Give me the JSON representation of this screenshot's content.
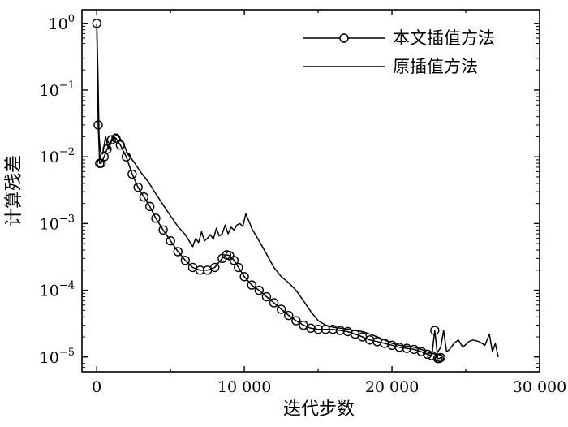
{
  "chart_data": {
    "type": "line",
    "title": "",
    "xlabel": "迭代步数",
    "ylabel": "计算残差",
    "xlim": [
      -1000,
      30000
    ],
    "ylim": [
      6e-06,
      1.6
    ],
    "y_scale": "log",
    "grid": false,
    "legend_position": "top-right",
    "x_ticks": [
      0,
      10000,
      20000,
      30000
    ],
    "x_tick_labels": [
      "0",
      "10 000",
      "20 000",
      "30 000"
    ],
    "y_ticks": [
      1e-05,
      0.0001,
      0.001,
      0.01,
      0.1,
      1
    ],
    "y_tick_labels": [
      {
        "base": "10",
        "exp": "−5"
      },
      {
        "base": "10",
        "exp": "−4"
      },
      {
        "base": "10",
        "exp": "−3"
      },
      {
        "base": "10",
        "exp": "−2"
      },
      {
        "base": "10",
        "exp": "−1"
      },
      {
        "base": "10",
        "exp": "0"
      }
    ],
    "series": [
      {
        "name": "本文插值方法",
        "marker": "circle-open",
        "color": "#000000",
        "x": [
          0,
          100,
          200,
          300,
          500,
          700,
          1000,
          1300,
          1600,
          2000,
          2400,
          2800,
          3200,
          3600,
          4000,
          4500,
          5000,
          5500,
          6000,
          6500,
          7000,
          7500,
          8000,
          8500,
          8800,
          9000,
          9300,
          9600,
          10000,
          10500,
          11000,
          11500,
          12000,
          12500,
          13000,
          13500,
          14000,
          14500,
          15000,
          15500,
          16000,
          16500,
          17000,
          17500,
          18000,
          18500,
          19000,
          19500,
          20000,
          20500,
          21000,
          21500,
          22000,
          22400,
          22700,
          22900,
          23100,
          23200,
          23300
        ],
        "y": [
          1.0,
          0.03,
          0.008,
          0.008,
          0.01,
          0.013,
          0.018,
          0.019,
          0.015,
          0.01,
          0.0055,
          0.0035,
          0.0025,
          0.0018,
          0.0012,
          0.0008,
          0.00055,
          0.00038,
          0.00028,
          0.00022,
          0.0002,
          0.0002,
          0.00022,
          0.0003,
          0.00034,
          0.00033,
          0.00028,
          0.00022,
          0.00016,
          0.00012,
          0.0001,
          8e-05,
          6.5e-05,
          5.2e-05,
          4.2e-05,
          3.5e-05,
          3e-05,
          2.7e-05,
          2.6e-05,
          2.6e-05,
          2.6e-05,
          2.5e-05,
          2.4e-05,
          2.2e-05,
          2e-05,
          1.8e-05,
          1.7e-05,
          1.6e-05,
          1.5e-05,
          1.4e-05,
          1.35e-05,
          1.3e-05,
          1.2e-05,
          1.1e-05,
          1.05e-05,
          2.5e-05,
          9.5e-06,
          9.5e-06,
          9.8e-06
        ]
      },
      {
        "name": "原插值方法",
        "marker": "none",
        "color": "#000000",
        "x": [
          0,
          80,
          160,
          250,
          400,
          600,
          800,
          1000,
          1200,
          1500,
          1800,
          2100,
          2500,
          3000,
          3500,
          4000,
          4500,
          5000,
          5500,
          6000,
          6500,
          6700,
          6900,
          7100,
          7300,
          7500,
          7700,
          7900,
          8100,
          8300,
          8500,
          8700,
          8900,
          9100,
          9300,
          9500,
          9700,
          9900,
          10100,
          10300,
          10500,
          11000,
          11500,
          12000,
          12500,
          13000,
          13500,
          14000,
          14500,
          15000,
          15500,
          16000,
          16500,
          17000,
          17500,
          18000,
          18500,
          19000,
          19500,
          20000,
          20500,
          21000,
          21500,
          22000,
          22500,
          23000,
          23300,
          23500,
          23700,
          23900,
          24200,
          24500,
          24800,
          25200,
          25500,
          25900,
          26300,
          26600,
          26800,
          27000,
          27200
        ],
        "y": [
          1.0,
          0.2,
          0.02,
          0.012,
          0.011,
          0.02,
          0.013,
          0.017,
          0.022,
          0.02,
          0.016,
          0.011,
          0.0085,
          0.0058,
          0.0042,
          0.0028,
          0.0019,
          0.0013,
          0.0009,
          0.00068,
          0.00045,
          0.0006,
          0.00052,
          0.00075,
          0.00055,
          0.0006,
          0.00068,
          0.00058,
          0.00085,
          0.00065,
          0.0007,
          0.00095,
          0.0007,
          0.00088,
          0.0008,
          0.00095,
          0.001,
          0.0009,
          0.0014,
          0.0011,
          0.00085,
          0.00055,
          0.00035,
          0.00022,
          0.00016,
          0.00013,
          0.0001,
          7e-05,
          4.8e-05,
          3.5e-05,
          3e-05,
          2.8e-05,
          2.7e-05,
          2.6e-05,
          2.5e-05,
          2.4e-05,
          2.2e-05,
          2e-05,
          1.8e-05,
          1.6e-05,
          1.5e-05,
          1.45e-05,
          1.4e-05,
          1.3e-05,
          1.15e-05,
          1.1e-05,
          1.4e-05,
          2.5e-05,
          1.2e-05,
          1.3e-05,
          1.6e-05,
          1.8e-05,
          1.4e-05,
          1.7e-05,
          1.8e-05,
          1.7e-05,
          1.5e-05,
          2.2e-05,
          1.2e-05,
          1.6e-05,
          1e-05
        ]
      }
    ]
  }
}
